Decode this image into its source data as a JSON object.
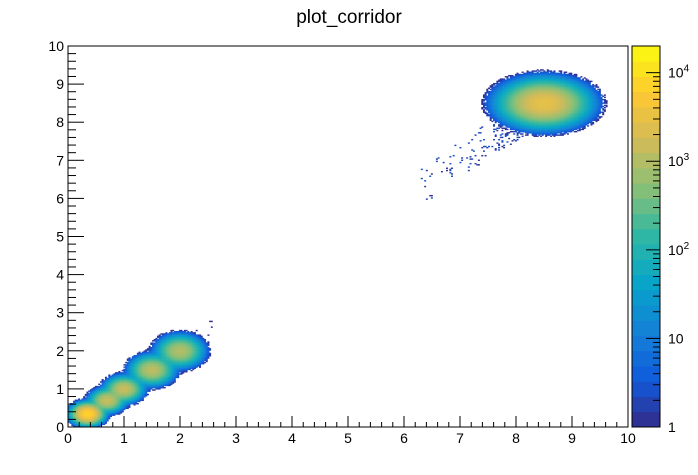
{
  "chart_data": {
    "type": "heatmap",
    "title": "plot_corridor",
    "xlabel": "",
    "ylabel": "",
    "xlim": [
      0,
      10
    ],
    "ylim": [
      0,
      10
    ],
    "x_ticks": [
      "0",
      "1",
      "2",
      "3",
      "4",
      "5",
      "6",
      "7",
      "8",
      "9",
      "10"
    ],
    "y_ticks": [
      "0",
      "1",
      "2",
      "3",
      "4",
      "5",
      "6",
      "7",
      "8",
      "9",
      "10"
    ],
    "z_scale": "log",
    "z_range": [
      1,
      20000
    ],
    "colorbar_labels": [
      {
        "value": 1,
        "label": "1"
      },
      {
        "value": 10,
        "label": "10"
      },
      {
        "value": 100,
        "label": "10",
        "exp": "2"
      },
      {
        "value": 1000,
        "label": "10",
        "exp": "3"
      },
      {
        "value": 10000,
        "label": "10",
        "exp": "4"
      }
    ],
    "palette": [
      "#352a87",
      "#0f5cdd",
      "#1481d6",
      "#06a4ca",
      "#2eb7a4",
      "#87bf77",
      "#d1bb59",
      "#fec832",
      "#f9fb0e"
    ],
    "clusters": [
      {
        "x": 0.35,
        "y": 0.35,
        "sx": 0.1,
        "sy": 0.1,
        "peak": 8000
      },
      {
        "x": 0.7,
        "y": 0.7,
        "sx": 0.11,
        "sy": 0.11,
        "peak": 1500
      },
      {
        "x": 1.0,
        "y": 1.0,
        "sx": 0.12,
        "sy": 0.12,
        "peak": 1500
      },
      {
        "x": 1.5,
        "y": 1.5,
        "sx": 0.14,
        "sy": 0.14,
        "peak": 1200
      },
      {
        "x": 2.0,
        "y": 2.0,
        "sx": 0.15,
        "sy": 0.15,
        "peak": 1000
      },
      {
        "x": 8.5,
        "y": 8.5,
        "sx": 0.28,
        "sy": 0.22,
        "peak": 3000
      }
    ]
  }
}
